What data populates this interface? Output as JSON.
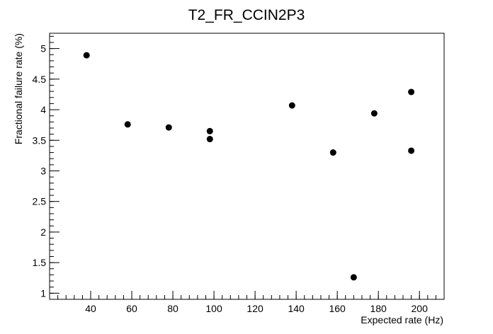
{
  "chart_data": {
    "type": "scatter",
    "title": "T2_FR_CCIN2P3",
    "xlabel": "Expected rate (Hz)",
    "ylabel": "Fractional failure rate (%)",
    "xlim": [
      20,
      212
    ],
    "ylim": [
      0.9,
      5.25
    ],
    "xticks": [
      40,
      60,
      80,
      100,
      120,
      140,
      160,
      180,
      200
    ],
    "yticks": [
      1,
      1.5,
      2,
      2.5,
      3,
      3.5,
      4,
      4.5,
      5
    ],
    "xtick_labels": [
      "40",
      "60",
      "80",
      "100",
      "120",
      "140",
      "160",
      "180",
      "200"
    ],
    "ytick_labels": [
      "1",
      "1.5",
      "2",
      "2.5",
      "3",
      "3.5",
      "4",
      "4.5",
      "5"
    ],
    "grid": false,
    "legend": false,
    "marker_color": "#000000",
    "points": [
      {
        "x": 38,
        "y": 4.89
      },
      {
        "x": 58,
        "y": 3.76
      },
      {
        "x": 78,
        "y": 3.71
      },
      {
        "x": 98,
        "y": 3.65
      },
      {
        "x": 98,
        "y": 3.52
      },
      {
        "x": 138,
        "y": 4.07
      },
      {
        "x": 158,
        "y": 3.3
      },
      {
        "x": 168,
        "y": 1.26
      },
      {
        "x": 178,
        "y": 3.94
      },
      {
        "x": 196,
        "y": 4.29
      },
      {
        "x": 196,
        "y": 3.33
      }
    ]
  }
}
